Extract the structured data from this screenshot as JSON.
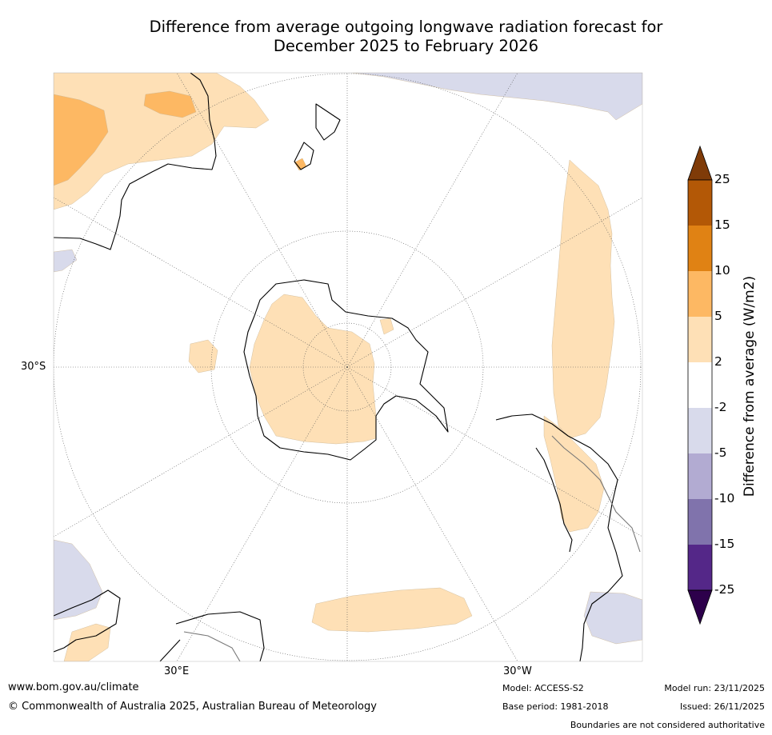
{
  "title": {
    "line1": "Difference from average outgoing longwave radiation forecast for",
    "line2": "December 2025 to February 2026"
  },
  "map": {
    "projection": "south-polar",
    "lat_label": "30°S",
    "lon_labels": [
      "30°E",
      "30°W"
    ]
  },
  "legend": {
    "label": "Difference from average (W/m2)",
    "ticks": [
      "25",
      "15",
      "10",
      "5",
      "2",
      "-2",
      "-5",
      "-10",
      "-15",
      "-25"
    ],
    "bins": [
      {
        "range": "25+",
        "color": "#7f3b08"
      },
      {
        "range": "15 to 25",
        "color": "#b35806"
      },
      {
        "range": "10 to 15",
        "color": "#e08214"
      },
      {
        "range": "5 to 10",
        "color": "#fdb863"
      },
      {
        "range": "2 to 5",
        "color": "#fee0b6"
      },
      {
        "range": "-2 to 2",
        "color": "#ffffff"
      },
      {
        "range": "-5 to -2",
        "color": "#d8daeb"
      },
      {
        "range": "-10 to -5",
        "color": "#b2abd2"
      },
      {
        "range": "-15 to -10",
        "color": "#8073ac"
      },
      {
        "range": "-25 to -15",
        "color": "#542788"
      },
      {
        "range": "below -25",
        "color": "#2d004b"
      }
    ]
  },
  "footer": {
    "website": "www.bom.gov.au/climate",
    "copyright": "© Commonwealth of Australia 2025, Australian Bureau of Meteorology",
    "model": "Model: ACCESS-S2",
    "base_period": "Base period: 1981-2018",
    "model_run": "Model run: 23/11/2025",
    "issued": "Issued: 26/11/2025",
    "disclaimer": "Boundaries are not considered authoritative"
  }
}
